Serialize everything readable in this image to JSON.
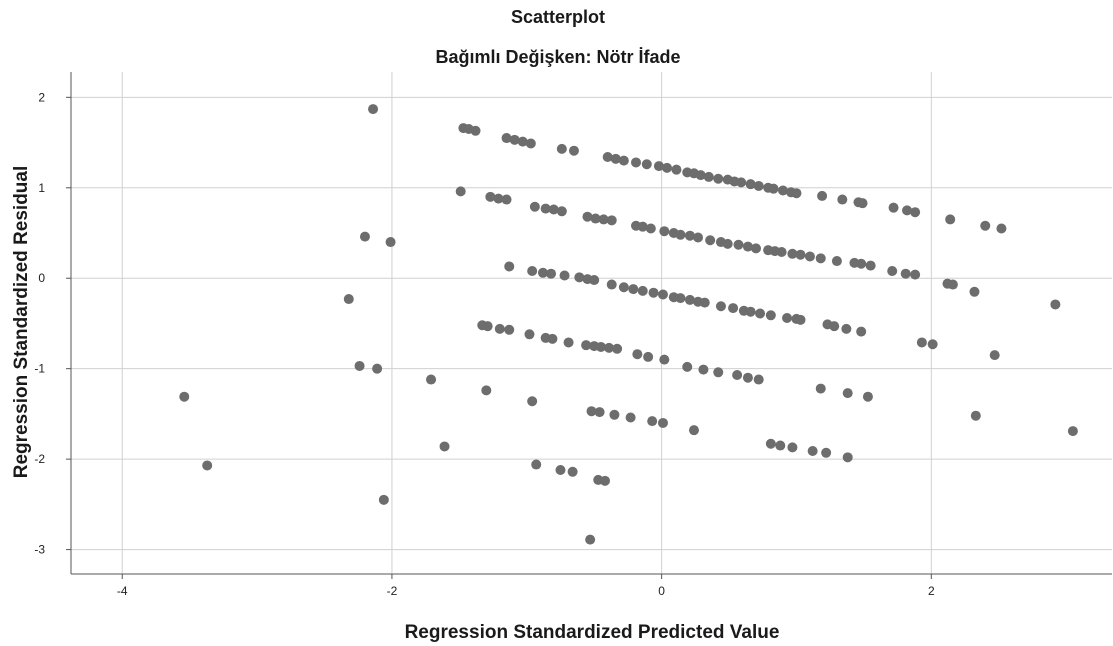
{
  "chart_data": {
    "type": "scatter",
    "title": "Scatterplot",
    "subtitle": "Bağımlı Değişken: Nötr İfade",
    "xlabel": "Regression Standardized Predicted Value",
    "ylabel": "Regression Standardized Residual",
    "xlim": [
      -4.38,
      3.34
    ],
    "ylim": [
      -3.27,
      2.28
    ],
    "xticks": [
      -4,
      -2,
      0,
      2
    ],
    "yticks": [
      2,
      1,
      0,
      -1,
      -2,
      -3
    ],
    "xtick_labels": [
      "-4",
      "-2",
      "0",
      "2"
    ],
    "ytick_labels": [
      "2",
      "1",
      "0",
      "-1",
      "-2",
      "-3"
    ],
    "grid": true,
    "point_color": "#6d6d6d",
    "points": [
      [
        -2.14,
        1.87
      ],
      [
        -1.47,
        1.66
      ],
      [
        -1.43,
        1.65
      ],
      [
        -1.38,
        1.63
      ],
      [
        -1.15,
        1.55
      ],
      [
        -1.09,
        1.53
      ],
      [
        -1.03,
        1.51
      ],
      [
        -0.97,
        1.49
      ],
      [
        -0.74,
        1.43
      ],
      [
        -0.65,
        1.41
      ],
      [
        -0.4,
        1.34
      ],
      [
        -0.34,
        1.32
      ],
      [
        -0.28,
        1.3
      ],
      [
        -0.19,
        1.28
      ],
      [
        -0.11,
        1.26
      ],
      [
        -0.02,
        1.24
      ],
      [
        0.04,
        1.22
      ],
      [
        0.11,
        1.2
      ],
      [
        0.19,
        1.17
      ],
      [
        0.24,
        1.16
      ],
      [
        0.29,
        1.14
      ],
      [
        0.35,
        1.12
      ],
      [
        0.42,
        1.1
      ],
      [
        0.49,
        1.09
      ],
      [
        0.54,
        1.07
      ],
      [
        0.59,
        1.06
      ],
      [
        0.66,
        1.04
      ],
      [
        0.72,
        1.02
      ],
      [
        0.79,
        1.0
      ],
      [
        0.83,
        0.99
      ],
      [
        0.9,
        0.97
      ],
      [
        0.96,
        0.95
      ],
      [
        1.0,
        0.94
      ],
      [
        1.19,
        0.91
      ],
      [
        1.34,
        0.87
      ],
      [
        1.46,
        0.84
      ],
      [
        1.49,
        0.83
      ],
      [
        1.72,
        0.78
      ],
      [
        1.82,
        0.75
      ],
      [
        1.88,
        0.73
      ],
      [
        2.14,
        0.65
      ],
      [
        2.4,
        0.58
      ],
      [
        2.52,
        0.55
      ],
      [
        -1.49,
        0.96
      ],
      [
        -1.27,
        0.9
      ],
      [
        -1.21,
        0.88
      ],
      [
        -1.15,
        0.87
      ],
      [
        -0.94,
        0.79
      ],
      [
        -0.86,
        0.77
      ],
      [
        -0.8,
        0.76
      ],
      [
        -0.74,
        0.74
      ],
      [
        -0.55,
        0.68
      ],
      [
        -0.49,
        0.66
      ],
      [
        -0.43,
        0.65
      ],
      [
        -0.37,
        0.64
      ],
      [
        -0.19,
        0.58
      ],
      [
        -0.14,
        0.57
      ],
      [
        -0.08,
        0.55
      ],
      [
        0.02,
        0.52
      ],
      [
        0.09,
        0.5
      ],
      [
        0.14,
        0.48
      ],
      [
        0.21,
        0.47
      ],
      [
        0.27,
        0.45
      ],
      [
        0.36,
        0.42
      ],
      [
        0.44,
        0.4
      ],
      [
        0.49,
        0.38
      ],
      [
        0.57,
        0.37
      ],
      [
        0.64,
        0.35
      ],
      [
        0.7,
        0.33
      ],
      [
        0.79,
        0.31
      ],
      [
        0.84,
        0.3
      ],
      [
        0.89,
        0.29
      ],
      [
        0.97,
        0.27
      ],
      [
        1.03,
        0.26
      ],
      [
        1.1,
        0.24
      ],
      [
        1.18,
        0.22
      ],
      [
        1.3,
        0.19
      ],
      [
        1.43,
        0.17
      ],
      [
        1.48,
        0.16
      ],
      [
        1.55,
        0.14
      ],
      [
        1.71,
        0.08
      ],
      [
        1.81,
        0.05
      ],
      [
        1.88,
        0.04
      ],
      [
        2.12,
        -0.06
      ],
      [
        2.16,
        -0.07
      ],
      [
        2.32,
        -0.15
      ],
      [
        -2.2,
        0.46
      ],
      [
        -2.01,
        0.4
      ],
      [
        -1.13,
        0.13
      ],
      [
        -0.96,
        0.08
      ],
      [
        -0.88,
        0.06
      ],
      [
        -0.82,
        0.05
      ],
      [
        -0.72,
        0.03
      ],
      [
        -0.61,
        0.01
      ],
      [
        -0.55,
        -0.01
      ],
      [
        -0.5,
        -0.02
      ],
      [
        -0.37,
        -0.07
      ],
      [
        -0.28,
        -0.1
      ],
      [
        -0.21,
        -0.12
      ],
      [
        -0.14,
        -0.14
      ],
      [
        -0.06,
        -0.16
      ],
      [
        0.01,
        -0.18
      ],
      [
        0.09,
        -0.21
      ],
      [
        0.14,
        -0.22
      ],
      [
        0.21,
        -0.24
      ],
      [
        0.27,
        -0.26
      ],
      [
        0.32,
        -0.27
      ],
      [
        0.44,
        -0.31
      ],
      [
        0.53,
        -0.33
      ],
      [
        0.61,
        -0.36
      ],
      [
        0.66,
        -0.37
      ],
      [
        0.73,
        -0.39
      ],
      [
        0.81,
        -0.41
      ],
      [
        0.93,
        -0.44
      ],
      [
        1.0,
        -0.45
      ],
      [
        1.03,
        -0.46
      ],
      [
        1.23,
        -0.51
      ],
      [
        1.28,
        -0.53
      ],
      [
        1.37,
        -0.56
      ],
      [
        1.48,
        -0.59
      ],
      [
        1.93,
        -0.71
      ],
      [
        2.01,
        -0.73
      ],
      [
        2.47,
        -0.85
      ],
      [
        2.92,
        -0.29
      ],
      [
        -2.32,
        -0.23
      ],
      [
        -1.33,
        -0.52
      ],
      [
        -1.29,
        -0.53
      ],
      [
        -1.2,
        -0.56
      ],
      [
        -1.13,
        -0.57
      ],
      [
        -0.98,
        -0.62
      ],
      [
        -0.86,
        -0.66
      ],
      [
        -0.81,
        -0.67
      ],
      [
        -0.69,
        -0.71
      ],
      [
        -0.56,
        -0.74
      ],
      [
        -0.5,
        -0.75
      ],
      [
        -0.45,
        -0.76
      ],
      [
        -0.39,
        -0.77
      ],
      [
        -0.33,
        -0.78
      ],
      [
        -0.18,
        -0.84
      ],
      [
        -0.1,
        -0.87
      ],
      [
        0.02,
        -0.9
      ],
      [
        0.19,
        -0.98
      ],
      [
        0.31,
        -1.01
      ],
      [
        0.42,
        -1.04
      ],
      [
        0.56,
        -1.07
      ],
      [
        0.64,
        -1.1
      ],
      [
        0.72,
        -1.12
      ],
      [
        1.18,
        -1.22
      ],
      [
        1.38,
        -1.27
      ],
      [
        1.53,
        -1.31
      ],
      [
        2.33,
        -1.52
      ],
      [
        3.05,
        -1.69
      ],
      [
        -2.24,
        -0.97
      ],
      [
        -2.11,
        -1.0
      ],
      [
        -1.71,
        -1.12
      ],
      [
        -1.3,
        -1.24
      ],
      [
        -0.96,
        -1.36
      ],
      [
        -0.52,
        -1.47
      ],
      [
        -0.46,
        -1.48
      ],
      [
        -0.35,
        -1.51
      ],
      [
        -0.23,
        -1.54
      ],
      [
        -0.07,
        -1.58
      ],
      [
        0.01,
        -1.6
      ],
      [
        0.24,
        -1.68
      ],
      [
        0.81,
        -1.83
      ],
      [
        0.88,
        -1.85
      ],
      [
        0.97,
        -1.87
      ],
      [
        1.12,
        -1.91
      ],
      [
        1.22,
        -1.93
      ],
      [
        1.38,
        -1.98
      ],
      [
        -1.61,
        -1.86
      ],
      [
        -3.54,
        -1.31
      ],
      [
        -3.37,
        -2.07
      ],
      [
        -0.93,
        -2.06
      ],
      [
        -0.75,
        -2.12
      ],
      [
        -0.66,
        -2.14
      ],
      [
        -0.47,
        -2.23
      ],
      [
        -0.42,
        -2.24
      ],
      [
        -2.06,
        -2.45
      ],
      [
        -0.53,
        -2.89
      ]
    ]
  }
}
